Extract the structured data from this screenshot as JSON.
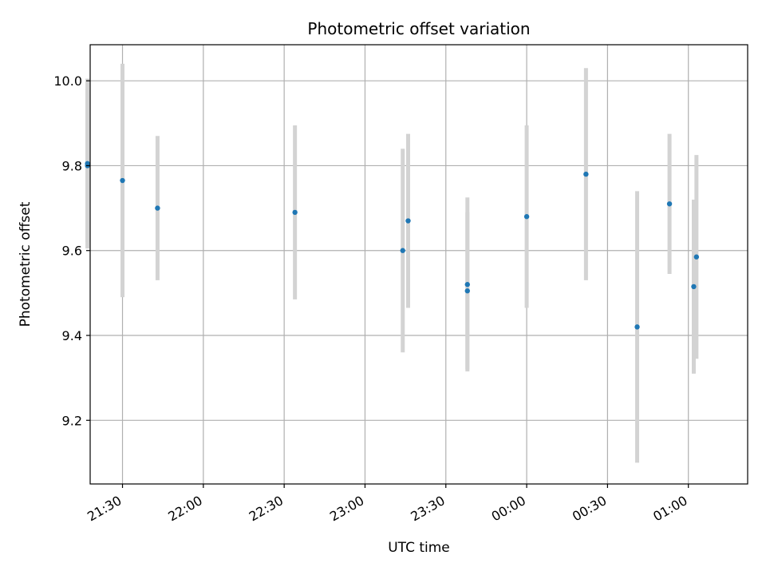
{
  "chart_data": {
    "type": "scatter",
    "title": "Photometric offset variation",
    "xlabel": "UTC time",
    "ylabel": "Photometric offset",
    "grid": true,
    "xlim": [
      "21:18",
      "01:22"
    ],
    "ylim": [
      9.05,
      10.085
    ],
    "x_ticks": [
      "21:30",
      "22:00",
      "22:30",
      "23:00",
      "23:30",
      "00:00",
      "00:30",
      "01:00"
    ],
    "y_ticks": [
      "9.2",
      "9.4",
      "9.6",
      "9.8",
      "10.0"
    ],
    "colors": {
      "points": "#1f77b4",
      "errorbars": "#d3d3d3",
      "grid": "#b0b0b0"
    },
    "series": [
      {
        "points": [
          {
            "x": "21:17",
            "y": 9.8,
            "err": 0.18
          },
          {
            "x": "21:17",
            "y": 9.805,
            "err": 0.2
          },
          {
            "x": "21:30",
            "y": 9.765,
            "err": 0.275
          },
          {
            "x": "21:43",
            "y": 9.7,
            "err": 0.17
          },
          {
            "x": "22:34",
            "y": 9.69,
            "err": 0.205
          },
          {
            "x": "23:14",
            "y": 9.6,
            "err": 0.24
          },
          {
            "x": "23:16",
            "y": 9.67,
            "err": 0.205
          },
          {
            "x": "23:38",
            "y": 9.505,
            "err": 0.185
          },
          {
            "x": "23:38",
            "y": 9.52,
            "err": 0.205
          },
          {
            "x": "00:00",
            "y": 9.68,
            "err": 0.215
          },
          {
            "x": "00:22",
            "y": 9.78,
            "err": 0.25
          },
          {
            "x": "00:41",
            "y": 9.42,
            "err": 0.32
          },
          {
            "x": "00:53",
            "y": 9.71,
            "err": 0.165
          },
          {
            "x": "01:02",
            "y": 9.515,
            "err": 0.205
          },
          {
            "x": "01:03",
            "y": 9.585,
            "err": 0.24
          }
        ]
      }
    ]
  }
}
